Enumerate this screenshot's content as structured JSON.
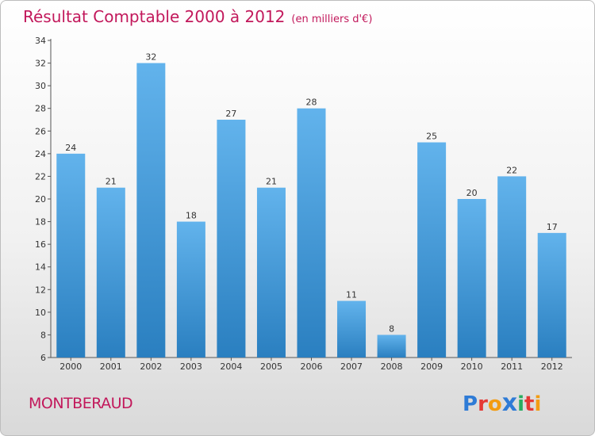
{
  "title": "Résultat Comptable 2000 à 2012",
  "subtitle": "(en milliers d'€)",
  "commune": "MONTBERAUD",
  "logo": {
    "letters": [
      "P",
      "r",
      "o",
      "x",
      "i",
      "t",
      "i"
    ],
    "colors": [
      "#2e7bd6",
      "#e53935",
      "#f39c12",
      "#2e7bd6",
      "#27ae60",
      "#e53935",
      "#f39c12"
    ]
  },
  "colors": {
    "title": "#c2185b",
    "bar_top": "#62b3ec",
    "bar_bottom": "#2a7fc0"
  },
  "chart_data": {
    "type": "bar",
    "title": "Résultat Comptable 2000 à 2012",
    "subtitle": "(en milliers d'€)",
    "categories": [
      "2000",
      "2001",
      "2002",
      "2003",
      "2004",
      "2005",
      "2006",
      "2007",
      "2008",
      "2009",
      "2010",
      "2011",
      "2012"
    ],
    "values": [
      24,
      21,
      32,
      18,
      27,
      21,
      28,
      11,
      8,
      25,
      20,
      22,
      17
    ],
    "ylim": [
      6,
      34
    ],
    "yticks": [
      6,
      8,
      10,
      12,
      14,
      16,
      18,
      20,
      22,
      24,
      26,
      28,
      30,
      32,
      34
    ],
    "xlabel": "",
    "ylabel": "",
    "grid": false,
    "legend": "none"
  }
}
